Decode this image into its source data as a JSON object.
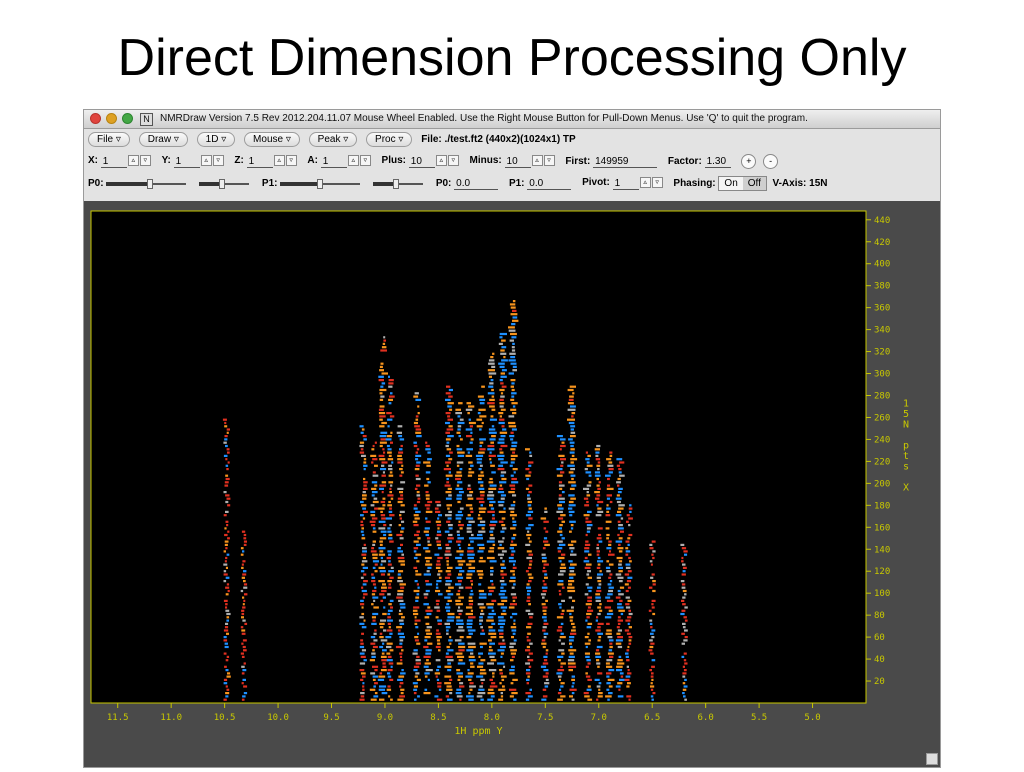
{
  "slide": {
    "title": "Direct Dimension Processing Only"
  },
  "window": {
    "title": "NMRDraw Version 7.5 Rev 2012.204.11.07   Mouse Wheel Enabled.   Use the Right Mouse Button for Pull-Down Menus.   Use 'Q' to quit the program.",
    "app_icon": "N"
  },
  "menus": [
    {
      "label": "File"
    },
    {
      "label": "Draw"
    },
    {
      "label": "1D"
    },
    {
      "label": "Mouse"
    },
    {
      "label": "Peak"
    },
    {
      "label": "Proc"
    }
  ],
  "file_info": "File: ./test.ft2 (440x2)(1024x1) TP",
  "row2": {
    "x": {
      "label": "X:",
      "value": "1"
    },
    "y": {
      "label": "Y:",
      "value": "1"
    },
    "z": {
      "label": "Z:",
      "value": "1"
    },
    "a": {
      "label": "A:",
      "value": "1"
    },
    "plus": {
      "label": "Plus:",
      "value": "10"
    },
    "minus": {
      "label": "Minus:",
      "value": "10"
    },
    "first": {
      "label": "First:",
      "value": "149959"
    },
    "factor": {
      "label": "Factor:",
      "value": "1.30"
    },
    "inc": "+",
    "dec": "-"
  },
  "row3": {
    "p0_slider_label": "P0:",
    "p1_slider_label": "P1:",
    "p0": {
      "label": "P0:",
      "value": "0.0"
    },
    "p1": {
      "label": "P1:",
      "value": "0.0"
    },
    "pivot": {
      "label": "Pivot:",
      "value": "1"
    },
    "phasing": {
      "label": "Phasing:",
      "on": "On",
      "off": "Off",
      "selected": "Off"
    },
    "vaxis": "V-Axis: 15N",
    "p0_coarse_level": 0.55,
    "p0_fine_level": 0.45,
    "p1_coarse_level": 0.5,
    "p1_fine_level": 0.45
  },
  "chart_data": {
    "type": "heatmap",
    "xlabel": "1H ppm Y",
    "ylabel": "15N pts X",
    "x_range": [
      11.75,
      4.5
    ],
    "y_range": [
      0,
      448
    ],
    "x_ticks": [
      "11.5",
      "11.0",
      "10.5",
      "10.0",
      "9.5",
      "9.0",
      "8.5",
      "8.0",
      "7.5",
      "7.0",
      "6.5",
      "6.0",
      "5.5",
      "5.0"
    ],
    "y_ticks": [
      "20",
      "40",
      "60",
      "80",
      "100",
      "120",
      "140",
      "160",
      "180",
      "200",
      "220",
      "240",
      "260",
      "280",
      "300",
      "320",
      "340",
      "360",
      "380",
      "400",
      "420",
      "440"
    ],
    "positive_color": "#f7941d",
    "negative_color": "#1e90ff",
    "background": "#000000",
    "frame_color": "#c8c800",
    "columns": [
      {
        "ppm": 10.48,
        "top": 262,
        "intensity": 0.4
      },
      {
        "ppm": 10.32,
        "top": 160,
        "intensity": 0.35
      },
      {
        "ppm": 9.2,
        "top": 255,
        "intensity": 0.6
      },
      {
        "ppm": 9.1,
        "top": 240,
        "intensity": 0.7
      },
      {
        "ppm": 9.02,
        "top": 335,
        "intensity": 0.85
      },
      {
        "ppm": 8.95,
        "top": 300,
        "intensity": 0.7
      },
      {
        "ppm": 8.85,
        "top": 255,
        "intensity": 0.8
      },
      {
        "ppm": 8.7,
        "top": 285,
        "intensity": 0.7
      },
      {
        "ppm": 8.6,
        "top": 240,
        "intensity": 0.9
      },
      {
        "ppm": 8.5,
        "top": 185,
        "intensity": 0.6
      },
      {
        "ppm": 8.4,
        "top": 290,
        "intensity": 0.9
      },
      {
        "ppm": 8.3,
        "top": 275,
        "intensity": 1.0
      },
      {
        "ppm": 8.2,
        "top": 275,
        "intensity": 1.0
      },
      {
        "ppm": 8.1,
        "top": 290,
        "intensity": 1.0
      },
      {
        "ppm": 8.0,
        "top": 320,
        "intensity": 1.0
      },
      {
        "ppm": 7.9,
        "top": 340,
        "intensity": 0.9
      },
      {
        "ppm": 7.8,
        "top": 370,
        "intensity": 0.9
      },
      {
        "ppm": 7.65,
        "top": 235,
        "intensity": 0.6
      },
      {
        "ppm": 7.5,
        "top": 180,
        "intensity": 0.6
      },
      {
        "ppm": 7.35,
        "top": 250,
        "intensity": 0.8
      },
      {
        "ppm": 7.25,
        "top": 290,
        "intensity": 1.0
      },
      {
        "ppm": 7.1,
        "top": 230,
        "intensity": 0.7
      },
      {
        "ppm": 7.0,
        "top": 238,
        "intensity": 0.7
      },
      {
        "ppm": 6.9,
        "top": 230,
        "intensity": 0.8
      },
      {
        "ppm": 6.8,
        "top": 225,
        "intensity": 0.9
      },
      {
        "ppm": 6.72,
        "top": 185,
        "intensity": 0.5
      },
      {
        "ppm": 6.5,
        "top": 150,
        "intensity": 0.4
      },
      {
        "ppm": 6.2,
        "top": 148,
        "intensity": 0.4
      }
    ]
  }
}
